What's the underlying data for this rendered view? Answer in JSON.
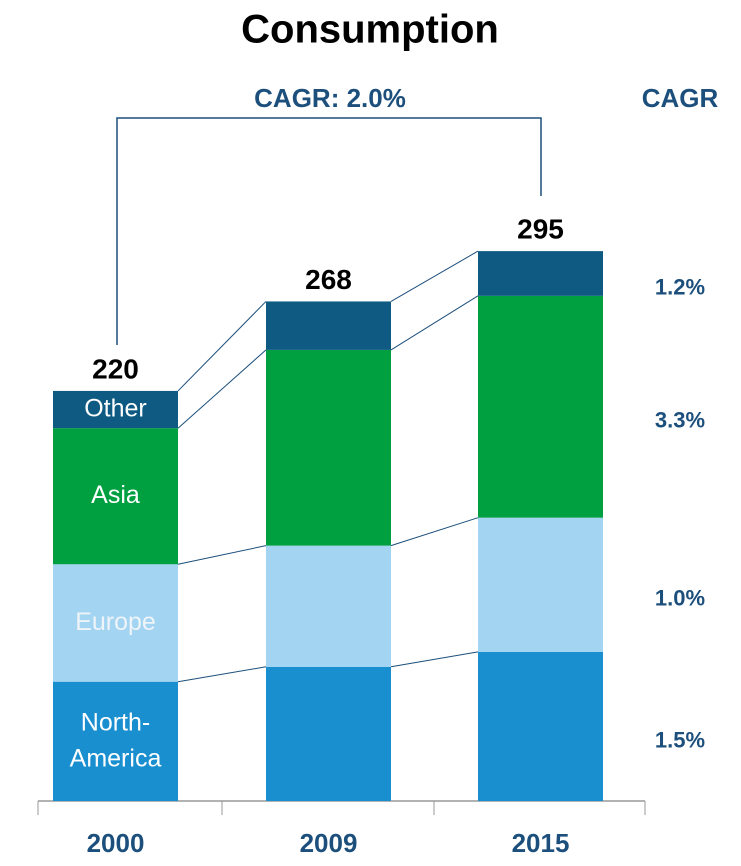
{
  "chart_data": {
    "type": "stacked_bar",
    "title": "Consumption",
    "categories": [
      "2000",
      "2009",
      "2015"
    ],
    "series": [
      {
        "name": "North-America",
        "color": "#1a8fd0",
        "values": [
          64,
          72,
          80
        ],
        "cagr": "1.5%"
      },
      {
        "name": "Europe",
        "color": "#a3d4f2",
        "values": [
          63,
          65,
          72
        ],
        "cagr": "1.0%"
      },
      {
        "name": "Asia",
        "color": "#00a040",
        "values": [
          73,
          105,
          119
        ],
        "cagr": "3.3%"
      },
      {
        "name": "Other",
        "color": "#0e5a82",
        "values": [
          20,
          26,
          24
        ],
        "cagr": "1.2%"
      }
    ],
    "totals": [
      220,
      268,
      295
    ],
    "cagr_title": "CAGR",
    "overall_cagr": "CAGR: 2.0%"
  }
}
